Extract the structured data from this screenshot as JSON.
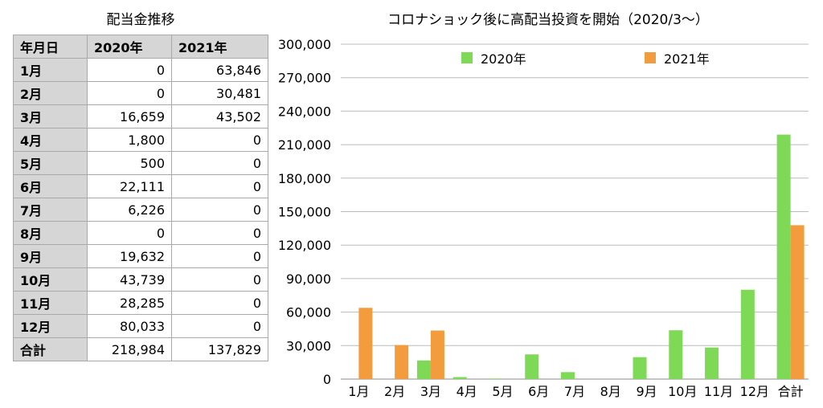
{
  "table": {
    "title": "配当金推移",
    "headers": [
      "年月日",
      "2020年",
      "2021年"
    ],
    "rows": [
      {
        "label": "1月",
        "v2020": "0",
        "v2021": "63,846"
      },
      {
        "label": "2月",
        "v2020": "0",
        "v2021": "30,481"
      },
      {
        "label": "3月",
        "v2020": "16,659",
        "v2021": "43,502"
      },
      {
        "label": "4月",
        "v2020": "1,800",
        "v2021": "0"
      },
      {
        "label": "5月",
        "v2020": "500",
        "v2021": "0"
      },
      {
        "label": "6月",
        "v2020": "22,111",
        "v2021": "0"
      },
      {
        "label": "7月",
        "v2020": "6,226",
        "v2021": "0"
      },
      {
        "label": "8月",
        "v2020": "0",
        "v2021": "0"
      },
      {
        "label": "9月",
        "v2020": "19,632",
        "v2021": "0"
      },
      {
        "label": "10月",
        "v2020": "43,739",
        "v2021": "0"
      },
      {
        "label": "11月",
        "v2020": "28,285",
        "v2021": "0"
      },
      {
        "label": "12月",
        "v2020": "80,033",
        "v2021": "0"
      },
      {
        "label": "合計",
        "v2020": "218,984",
        "v2021": "137,829"
      }
    ]
  },
  "chart_data": {
    "type": "bar",
    "title": "コロナショック後に高配当投資を開始（2020/3〜）",
    "categories": [
      "1月",
      "2月",
      "3月",
      "4月",
      "5月",
      "6月",
      "7月",
      "8月",
      "9月",
      "10月",
      "11月",
      "12月",
      "合計"
    ],
    "series": [
      {
        "name": "2020年",
        "color": "#7ed957",
        "values": [
          0,
          0,
          16659,
          1800,
          500,
          22111,
          6226,
          0,
          19632,
          43739,
          28285,
          80033,
          218984
        ]
      },
      {
        "name": "2021年",
        "color": "#f39c3e",
        "values": [
          63846,
          30481,
          43502,
          0,
          0,
          0,
          0,
          0,
          0,
          0,
          0,
          0,
          137829
        ]
      }
    ],
    "ylim": [
      0,
      300000
    ],
    "yticks": [
      0,
      30000,
      60000,
      90000,
      120000,
      150000,
      180000,
      210000,
      240000,
      270000,
      300000
    ],
    "ytick_labels": [
      "0",
      "30,000",
      "60,000",
      "90,000",
      "120,000",
      "150,000",
      "180,000",
      "210,000",
      "240,000",
      "270,000",
      "300,000"
    ],
    "grid": true,
    "legend": "top-center"
  }
}
